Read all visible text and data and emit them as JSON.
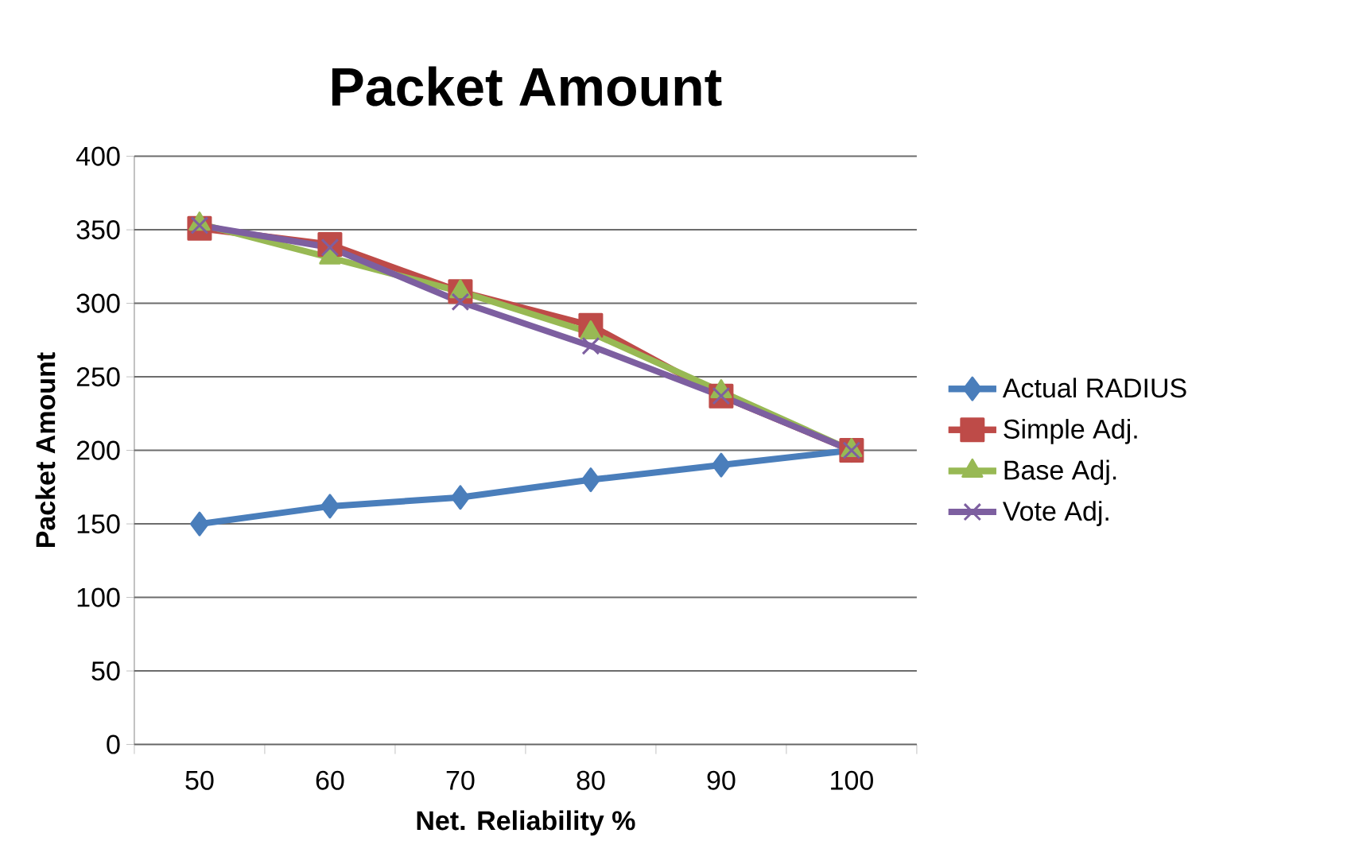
{
  "chart_data": {
    "type": "line",
    "title": "Packet Amount",
    "xlabel": "Net. Reliability %",
    "ylabel": "Packet Amount",
    "categories": [
      "50",
      "60",
      "70",
      "80",
      "90",
      "100"
    ],
    "series": [
      {
        "name": "Actual RADIUS",
        "color": "#4a7ebb",
        "marker": "diamond",
        "values": [
          150,
          162,
          168,
          180,
          190,
          200
        ]
      },
      {
        "name": "Simple Adj.",
        "color": "#be4b48",
        "marker": "square",
        "values": [
          351,
          340,
          308,
          285,
          237,
          200
        ]
      },
      {
        "name": "Base Adj.",
        "color": "#98b954",
        "marker": "triangle",
        "values": [
          354,
          331,
          308,
          280,
          240,
          200
        ]
      },
      {
        "name": "Vote Adj.",
        "color": "#7d5fa0",
        "marker": "cross",
        "values": [
          353,
          338,
          301,
          271,
          237,
          200
        ]
      }
    ],
    "ylim": [
      0,
      400
    ],
    "yticks": [
      0,
      50,
      100,
      150,
      200,
      250,
      300,
      350,
      400
    ],
    "grid": "y",
    "legend": "right",
    "line_style": "solid"
  }
}
